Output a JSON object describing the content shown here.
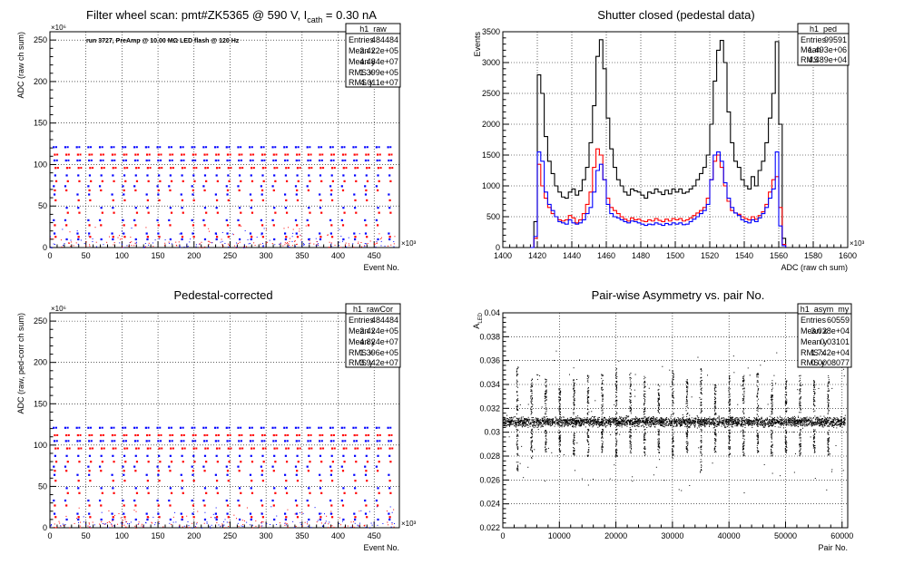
{
  "panels": {
    "raw": {
      "title_main": "Filter wheel scan: pmt#ZK5365 @   590 V, I",
      "title_sub": "cath",
      "title_tail": " = 0.30 nA",
      "annotation": "run 3727, PreAmp @ 10.00 MΩ LED flash @  120 Hz",
      "stats": {
        "name": "h1_raw",
        "rows": [
          [
            "Entries",
            "484484"
          ],
          [
            "Mean x",
            "2.422e+05"
          ],
          [
            "Mean y",
            "4.484e+07"
          ],
          [
            "RMS x",
            "1.399e+05"
          ],
          [
            "RMS y",
            "4.011e+07"
          ]
        ]
      }
    },
    "ped": {
      "title": "Shutter closed (pedestal data)",
      "stats": {
        "name": "h1_ped",
        "rows": [
          [
            "Entries",
            "99591"
          ],
          [
            "Mean",
            "1.493e+06"
          ],
          [
            "RMS",
            "4.489e+04"
          ]
        ]
      }
    },
    "cor": {
      "title": "Pedestal-corrected",
      "stats": {
        "name": "h1_rawCor",
        "rows": [
          [
            "Entries",
            "484484"
          ],
          [
            "Mean x",
            "2.424e+05"
          ],
          [
            "Mean y",
            "4.824e+07"
          ],
          [
            "RMS x",
            "1.396e+05"
          ],
          [
            "RMS y",
            "3.942e+07"
          ]
        ]
      }
    },
    "asym": {
      "title": "Pair-wise Asymmetry vs. pair No.",
      "stats": {
        "name": "h1_asym_my",
        "rows": [
          [
            "Entries",
            "60559"
          ],
          [
            "Mean x",
            "3.028e+04"
          ],
          [
            "Mean y",
            "0.03101"
          ],
          [
            "RMS x",
            "1.742e+04"
          ],
          [
            "RMS y",
            "0.0008077"
          ]
        ]
      }
    }
  },
  "chart_data": [
    {
      "type": "scatter",
      "title": "Filter wheel scan: pmt#ZK5365 @   590 V, I_cath = 0.30 nA",
      "xlabel": "Event No.",
      "ylabel": "ADC (raw ch sum)",
      "x_exponent": "×10³",
      "y_exponent": "×10⁶",
      "xlim": [
        0,
        485
      ],
      "ylim": [
        0,
        260
      ],
      "x_ticks": [
        0,
        50,
        100,
        150,
        200,
        250,
        300,
        350,
        400,
        450
      ],
      "y_ticks": [
        0,
        50,
        100,
        150,
        200,
        250
      ],
      "grid": true,
      "series": [
        {
          "color": "#0000ff",
          "levels": [
            121,
            105,
            87,
            74,
            64,
            48,
            33,
            17,
            10
          ]
        },
        {
          "color": "#ff0000",
          "levels": [
            112,
            96,
            80,
            69,
            57,
            42,
            27,
            13
          ]
        }
      ]
    },
    {
      "type": "line",
      "title": "Shutter closed (pedestal data)",
      "xlabel": "ADC (raw ch sum)",
      "ylabel": "Events",
      "x_exponent": "×10³",
      "xlim": [
        1400,
        1600
      ],
      "ylim": [
        0,
        3500
      ],
      "x_ticks": [
        1400,
        1420,
        1440,
        1460,
        1480,
        1500,
        1520,
        1540,
        1560,
        1580,
        1600
      ],
      "y_ticks": [
        0,
        500,
        1000,
        1500,
        2000,
        2500,
        3000,
        3500
      ],
      "grid": true,
      "x": [
        1417,
        1419,
        1421,
        1423,
        1425,
        1427,
        1429,
        1431,
        1433,
        1435,
        1437,
        1439,
        1441,
        1443,
        1445,
        1447,
        1449,
        1451,
        1453,
        1455,
        1457,
        1459,
        1461,
        1463,
        1465,
        1467,
        1469,
        1471,
        1473,
        1475,
        1477,
        1479,
        1481,
        1483,
        1485,
        1487,
        1489,
        1491,
        1493,
        1495,
        1497,
        1499,
        1501,
        1503,
        1505,
        1507,
        1509,
        1511,
        1513,
        1515,
        1517,
        1519,
        1521,
        1523,
        1525,
        1527,
        1529,
        1531,
        1533,
        1535,
        1537,
        1539,
        1541,
        1543,
        1545,
        1547,
        1549,
        1551,
        1553,
        1555,
        1557,
        1559,
        1561,
        1563
      ],
      "series": [
        {
          "color": "#000000",
          "values": [
            0,
            420,
            2800,
            2500,
            1800,
            1400,
            1200,
            1000,
            900,
            820,
            800,
            900,
            950,
            850,
            920,
            1100,
            1300,
            1700,
            2300,
            3100,
            3370,
            2900,
            2100,
            1600,
            1300,
            1100,
            1000,
            900,
            850,
            950,
            920,
            900,
            850,
            800,
            900,
            880,
            950,
            900,
            860,
            930,
            870,
            950,
            900,
            950,
            880,
            900,
            950,
            1000,
            1100,
            1200,
            1300,
            1500,
            2000,
            2700,
            3200,
            3360,
            3000,
            2200,
            1700,
            1400,
            1300,
            1100,
            1000,
            950,
            1150,
            1000,
            1250,
            1400,
            1700,
            2100,
            2500,
            3340,
            2000,
            150
          ]
        },
        {
          "color": "#ff0000",
          "values": [
            0,
            150,
            1350,
            1000,
            800,
            650,
            550,
            500,
            450,
            430,
            450,
            520,
            480,
            400,
            450,
            550,
            700,
            900,
            1300,
            1600,
            1500,
            1100,
            800,
            650,
            600,
            550,
            500,
            460,
            430,
            480,
            450,
            460,
            430,
            420,
            450,
            430,
            470,
            440,
            420,
            460,
            430,
            470,
            450,
            470,
            430,
            450,
            480,
            520,
            560,
            600,
            650,
            800,
            1100,
            1400,
            1500,
            1300,
            1000,
            750,
            600,
            560,
            540,
            500,
            470,
            450,
            500,
            460,
            520,
            580,
            700,
            900,
            1100,
            1150,
            650,
            50
          ]
        },
        {
          "color": "#0000ff",
          "values": [
            0,
            180,
            1550,
            1400,
            900,
            700,
            600,
            500,
            420,
            400,
            380,
            450,
            400,
            380,
            400,
            450,
            550,
            650,
            900,
            1250,
            1350,
            1100,
            700,
            550,
            500,
            480,
            450,
            420,
            400,
            430,
            420,
            400,
            380,
            360,
            380,
            370,
            400,
            380,
            360,
            390,
            370,
            400,
            380,
            400,
            370,
            380,
            420,
            460,
            500,
            550,
            600,
            700,
            1100,
            1500,
            1550,
            1400,
            1050,
            800,
            650,
            560,
            520,
            450,
            420,
            400,
            450,
            420,
            480,
            550,
            650,
            800,
            950,
            1550,
            350,
            30
          ]
        }
      ]
    },
    {
      "type": "scatter",
      "title": "Pedestal-corrected",
      "xlabel": "Event No.",
      "ylabel": "ADC (raw, ped-corr ch sum)",
      "x_exponent": "×10³",
      "y_exponent": "×10⁶",
      "xlim": [
        0,
        485
      ],
      "ylim": [
        0,
        260
      ],
      "x_ticks": [
        0,
        50,
        100,
        150,
        200,
        250,
        300,
        350,
        400,
        450
      ],
      "y_ticks": [
        0,
        50,
        100,
        150,
        200,
        250
      ],
      "grid": true,
      "series": [
        {
          "color": "#0000ff",
          "levels": [
            121,
            105,
            87,
            74,
            64,
            48,
            33,
            17,
            10
          ]
        },
        {
          "color": "#ff0000",
          "levels": [
            112,
            96,
            80,
            69,
            57,
            42,
            27,
            13
          ]
        }
      ]
    },
    {
      "type": "scatter",
      "title": "Pair-wise Asymmetry vs. pair No.",
      "xlabel": "Pair No.",
      "ylabel": "A_LED",
      "xlim": [
        0,
        61000
      ],
      "ylim": [
        0.022,
        0.04
      ],
      "x_ticks": [
        0,
        10000,
        20000,
        30000,
        40000,
        50000,
        60000
      ],
      "y_ticks": [
        0.022,
        0.024,
        0.026,
        0.028,
        0.03,
        0.032,
        0.034,
        0.036,
        0.038,
        0.04
      ],
      "grid": true,
      "band_center": 0.0309,
      "band_halfwidth": 0.0006,
      "spikes": [
        {
          "x": 2500,
          "top": 0.0355,
          "bottom": 0.0265
        },
        {
          "x": 5000,
          "top": 0.0345,
          "bottom": 0.0278
        },
        {
          "x": 7500,
          "top": 0.0345,
          "bottom": 0.0283
        },
        {
          "x": 10000,
          "top": 0.0338,
          "bottom": 0.0283
        },
        {
          "x": 12500,
          "top": 0.0345,
          "bottom": 0.028
        },
        {
          "x": 15000,
          "top": 0.0348,
          "bottom": 0.028
        },
        {
          "x": 17500,
          "top": 0.035,
          "bottom": 0.0283
        },
        {
          "x": 20000,
          "top": 0.0355,
          "bottom": 0.028
        },
        {
          "x": 22500,
          "top": 0.035,
          "bottom": 0.0283
        },
        {
          "x": 25000,
          "top": 0.0348,
          "bottom": 0.028
        },
        {
          "x": 27500,
          "top": 0.0342,
          "bottom": 0.0283
        },
        {
          "x": 30000,
          "top": 0.0352,
          "bottom": 0.0278
        },
        {
          "x": 32500,
          "top": 0.0345,
          "bottom": 0.0283
        },
        {
          "x": 35000,
          "top": 0.0355,
          "bottom": 0.0265
        },
        {
          "x": 37500,
          "top": 0.034,
          "bottom": 0.0283
        },
        {
          "x": 40000,
          "top": 0.0348,
          "bottom": 0.028
        },
        {
          "x": 42500,
          "top": 0.0348,
          "bottom": 0.028
        },
        {
          "x": 45000,
          "top": 0.035,
          "bottom": 0.0283
        },
        {
          "x": 47500,
          "top": 0.0345,
          "bottom": 0.028
        },
        {
          "x": 50000,
          "top": 0.0345,
          "bottom": 0.0283
        },
        {
          "x": 52500,
          "top": 0.0348,
          "bottom": 0.028
        },
        {
          "x": 55000,
          "top": 0.0345,
          "bottom": 0.0283
        },
        {
          "x": 57500,
          "top": 0.0348,
          "bottom": 0.028
        }
      ]
    }
  ]
}
